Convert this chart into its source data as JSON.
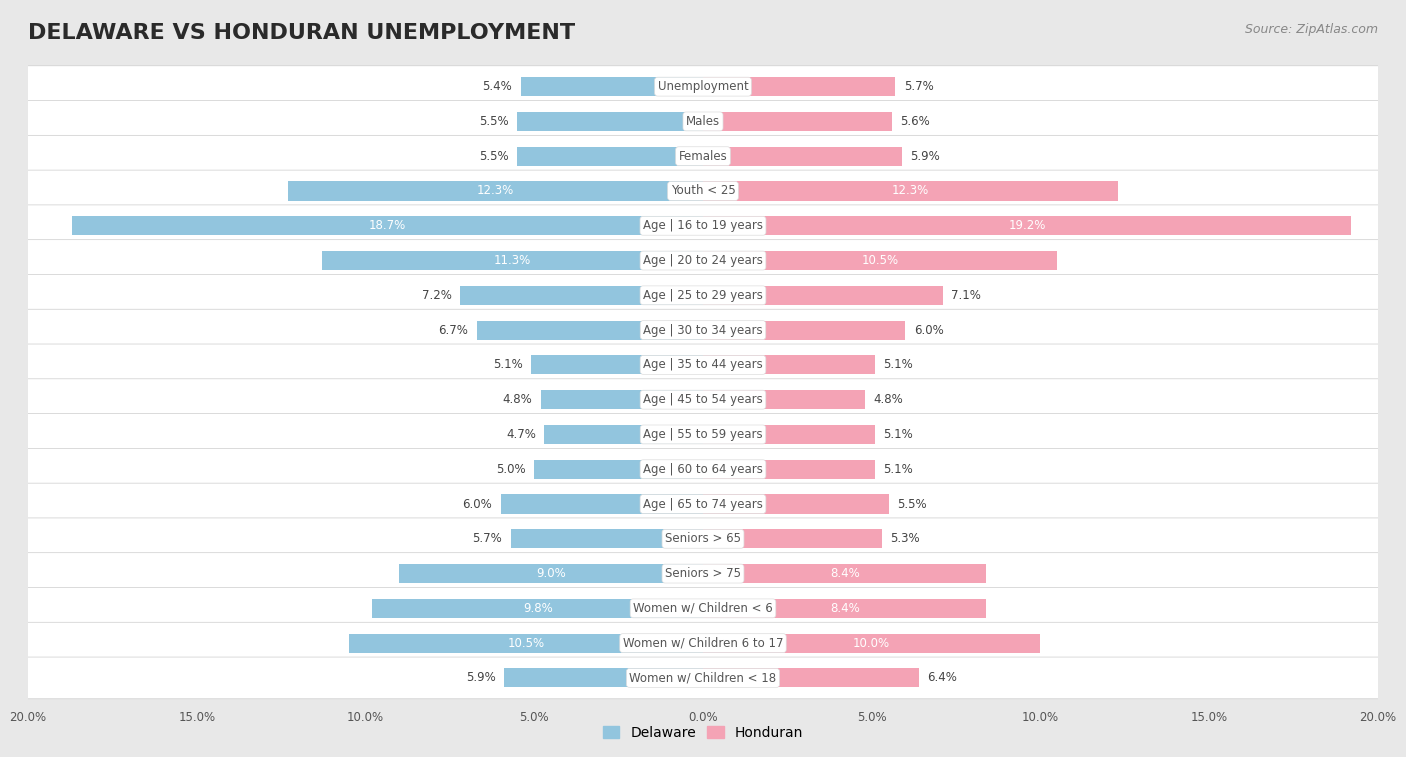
{
  "title": "DELAWARE VS HONDURAN UNEMPLOYMENT",
  "source": "Source: ZipAtlas.com",
  "categories": [
    "Unemployment",
    "Males",
    "Females",
    "Youth < 25",
    "Age | 16 to 19 years",
    "Age | 20 to 24 years",
    "Age | 25 to 29 years",
    "Age | 30 to 34 years",
    "Age | 35 to 44 years",
    "Age | 45 to 54 years",
    "Age | 55 to 59 years",
    "Age | 60 to 64 years",
    "Age | 65 to 74 years",
    "Seniors > 65",
    "Seniors > 75",
    "Women w/ Children < 6",
    "Women w/ Children 6 to 17",
    "Women w/ Children < 18"
  ],
  "delaware": [
    5.4,
    5.5,
    5.5,
    12.3,
    18.7,
    11.3,
    7.2,
    6.7,
    5.1,
    4.8,
    4.7,
    5.0,
    6.0,
    5.7,
    9.0,
    9.8,
    10.5,
    5.9
  ],
  "honduran": [
    5.7,
    5.6,
    5.9,
    12.3,
    19.2,
    10.5,
    7.1,
    6.0,
    5.1,
    4.8,
    5.1,
    5.1,
    5.5,
    5.3,
    8.4,
    8.4,
    10.0,
    6.4
  ],
  "delaware_color": "#92c5de",
  "honduran_color": "#f4a3b5",
  "delaware_label": "Delaware",
  "honduran_label": "Honduran",
  "xlim": 20.0,
  "background_color": "#e8e8e8",
  "row_color": "#ffffff",
  "title_fontsize": 16,
  "source_fontsize": 9,
  "label_fontsize": 8.5,
  "value_fontsize": 8.5
}
